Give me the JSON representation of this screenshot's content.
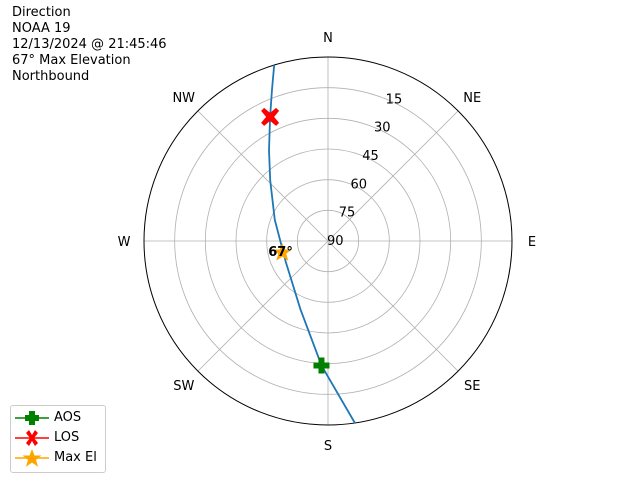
{
  "title_lines": [
    "Direction",
    "NOAA 19",
    "12/13/2024 @ 21:45:46",
    "67° Max Elevation",
    "Northbound"
  ],
  "chart_data": {
    "type": "polar-line",
    "theta_direction": "clockwise",
    "theta_zero": "N",
    "direction_labels": [
      {
        "az": 0,
        "label": "N"
      },
      {
        "az": 45,
        "label": "NE"
      },
      {
        "az": 90,
        "label": "E"
      },
      {
        "az": 135,
        "label": "SE"
      },
      {
        "az": 180,
        "label": "S"
      },
      {
        "az": 225,
        "label": "SW"
      },
      {
        "az": 270,
        "label": "W"
      },
      {
        "az": 315,
        "label": "NW"
      }
    ],
    "elevation_ticks": [
      90,
      75,
      60,
      45,
      30,
      15
    ],
    "elevation_range": [
      0,
      90
    ],
    "grid": true,
    "track": {
      "color": "#1f77b4",
      "points": [
        {
          "az": 171.6,
          "el": 0
        },
        {
          "az": 183,
          "el": 29
        },
        {
          "az": 202,
          "el": 54
        },
        {
          "az": 244,
          "el": 67
        },
        {
          "az": 291.6,
          "el": 62
        },
        {
          "az": 316.4,
          "el": 49
        },
        {
          "az": 327,
          "el": 37
        },
        {
          "az": 335,
          "el": 23
        },
        {
          "az": 339.7,
          "el": 11
        },
        {
          "az": 343,
          "el": 0
        }
      ]
    },
    "markers": [
      {
        "name": "AOS",
        "az": 183,
        "el": 29,
        "color": "#008000",
        "symbol": "plus"
      },
      {
        "name": "LOS",
        "az": 335,
        "el": 23,
        "color": "#ff0000",
        "symbol": "x"
      },
      {
        "name": "Max El",
        "az": 256.5,
        "el": 67,
        "color": "#ffa500",
        "symbol": "star"
      }
    ],
    "max_el_annotation": "67°",
    "legend_position": "lower-left"
  }
}
